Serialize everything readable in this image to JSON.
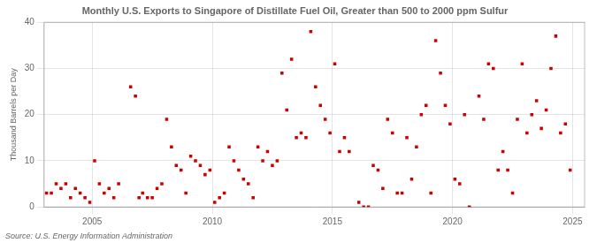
{
  "chart_data": {
    "type": "scatter",
    "title": "Monthly U.S. Exports to Singapore of Distillate Fuel Oil, Greater than 500 to 2000 ppm Sulfur",
    "ylabel": "Thousand Barrels per Day",
    "source": "Source: U.S. Energy Information Administration",
    "color": "#cc0000",
    "marker": "square",
    "grid": true,
    "xlim": [
      2003.0,
      2025.5
    ],
    "xticks": [
      2005,
      2010,
      2015,
      2020,
      2025
    ],
    "ylim": [
      0,
      40
    ],
    "yticks": [
      0,
      10,
      20,
      30,
      40
    ],
    "x": [
      2003.1,
      2003.3,
      2003.5,
      2003.7,
      2003.9,
      2004.1,
      2004.3,
      2004.5,
      2004.7,
      2004.9,
      2005.1,
      2005.3,
      2005.5,
      2005.7,
      2005.9,
      2006.1,
      2006.6,
      2006.8,
      2006.95,
      2007.1,
      2007.3,
      2007.5,
      2007.7,
      2007.9,
      2008.1,
      2008.3,
      2008.5,
      2008.7,
      2008.9,
      2009.1,
      2009.3,
      2009.5,
      2009.7,
      2009.9,
      2010.1,
      2010.3,
      2010.5,
      2010.7,
      2010.9,
      2011.1,
      2011.3,
      2011.5,
      2011.7,
      2011.9,
      2012.1,
      2012.3,
      2012.5,
      2012.7,
      2012.9,
      2013.1,
      2013.3,
      2013.5,
      2013.7,
      2013.9,
      2014.1,
      2014.3,
      2014.5,
      2014.7,
      2014.9,
      2015.1,
      2015.3,
      2015.5,
      2015.7,
      2016.1,
      2016.3,
      2016.5,
      2016.7,
      2016.9,
      2017.1,
      2017.3,
      2017.5,
      2017.7,
      2017.9,
      2018.1,
      2018.3,
      2018.5,
      2018.7,
      2018.9,
      2019.1,
      2019.3,
      2019.5,
      2019.7,
      2019.9,
      2020.1,
      2020.3,
      2020.5,
      2020.7,
      2021.1,
      2021.3,
      2021.5,
      2021.7,
      2021.9,
      2022.1,
      2022.3,
      2022.5,
      2022.7,
      2022.9,
      2023.1,
      2023.3,
      2023.5,
      2023.7,
      2023.9,
      2024.1,
      2024.3,
      2024.5,
      2024.7,
      2024.9
    ],
    "values": [
      3,
      3,
      5,
      4,
      5,
      2,
      4,
      3,
      2,
      1,
      10,
      5,
      3,
      4,
      2,
      5,
      26,
      24,
      2,
      3,
      2,
      2,
      4,
      5,
      19,
      13,
      9,
      8,
      3,
      11,
      10,
      9,
      7,
      8,
      1,
      2,
      3,
      13,
      10,
      8,
      6,
      5,
      2,
      13,
      10,
      12,
      9,
      10,
      29,
      21,
      32,
      15,
      16,
      15,
      38,
      26,
      22,
      19,
      16,
      31,
      12,
      15,
      12,
      1,
      0,
      0,
      9,
      8,
      4,
      19,
      16,
      3,
      3,
      15,
      6,
      13,
      20,
      22,
      3,
      36,
      29,
      22,
      18,
      6,
      5,
      20,
      0,
      24,
      19,
      31,
      30,
      8,
      12,
      8,
      3,
      19,
      31,
      16,
      20,
      23,
      17,
      21,
      30,
      37,
      16,
      18,
      8
    ]
  }
}
